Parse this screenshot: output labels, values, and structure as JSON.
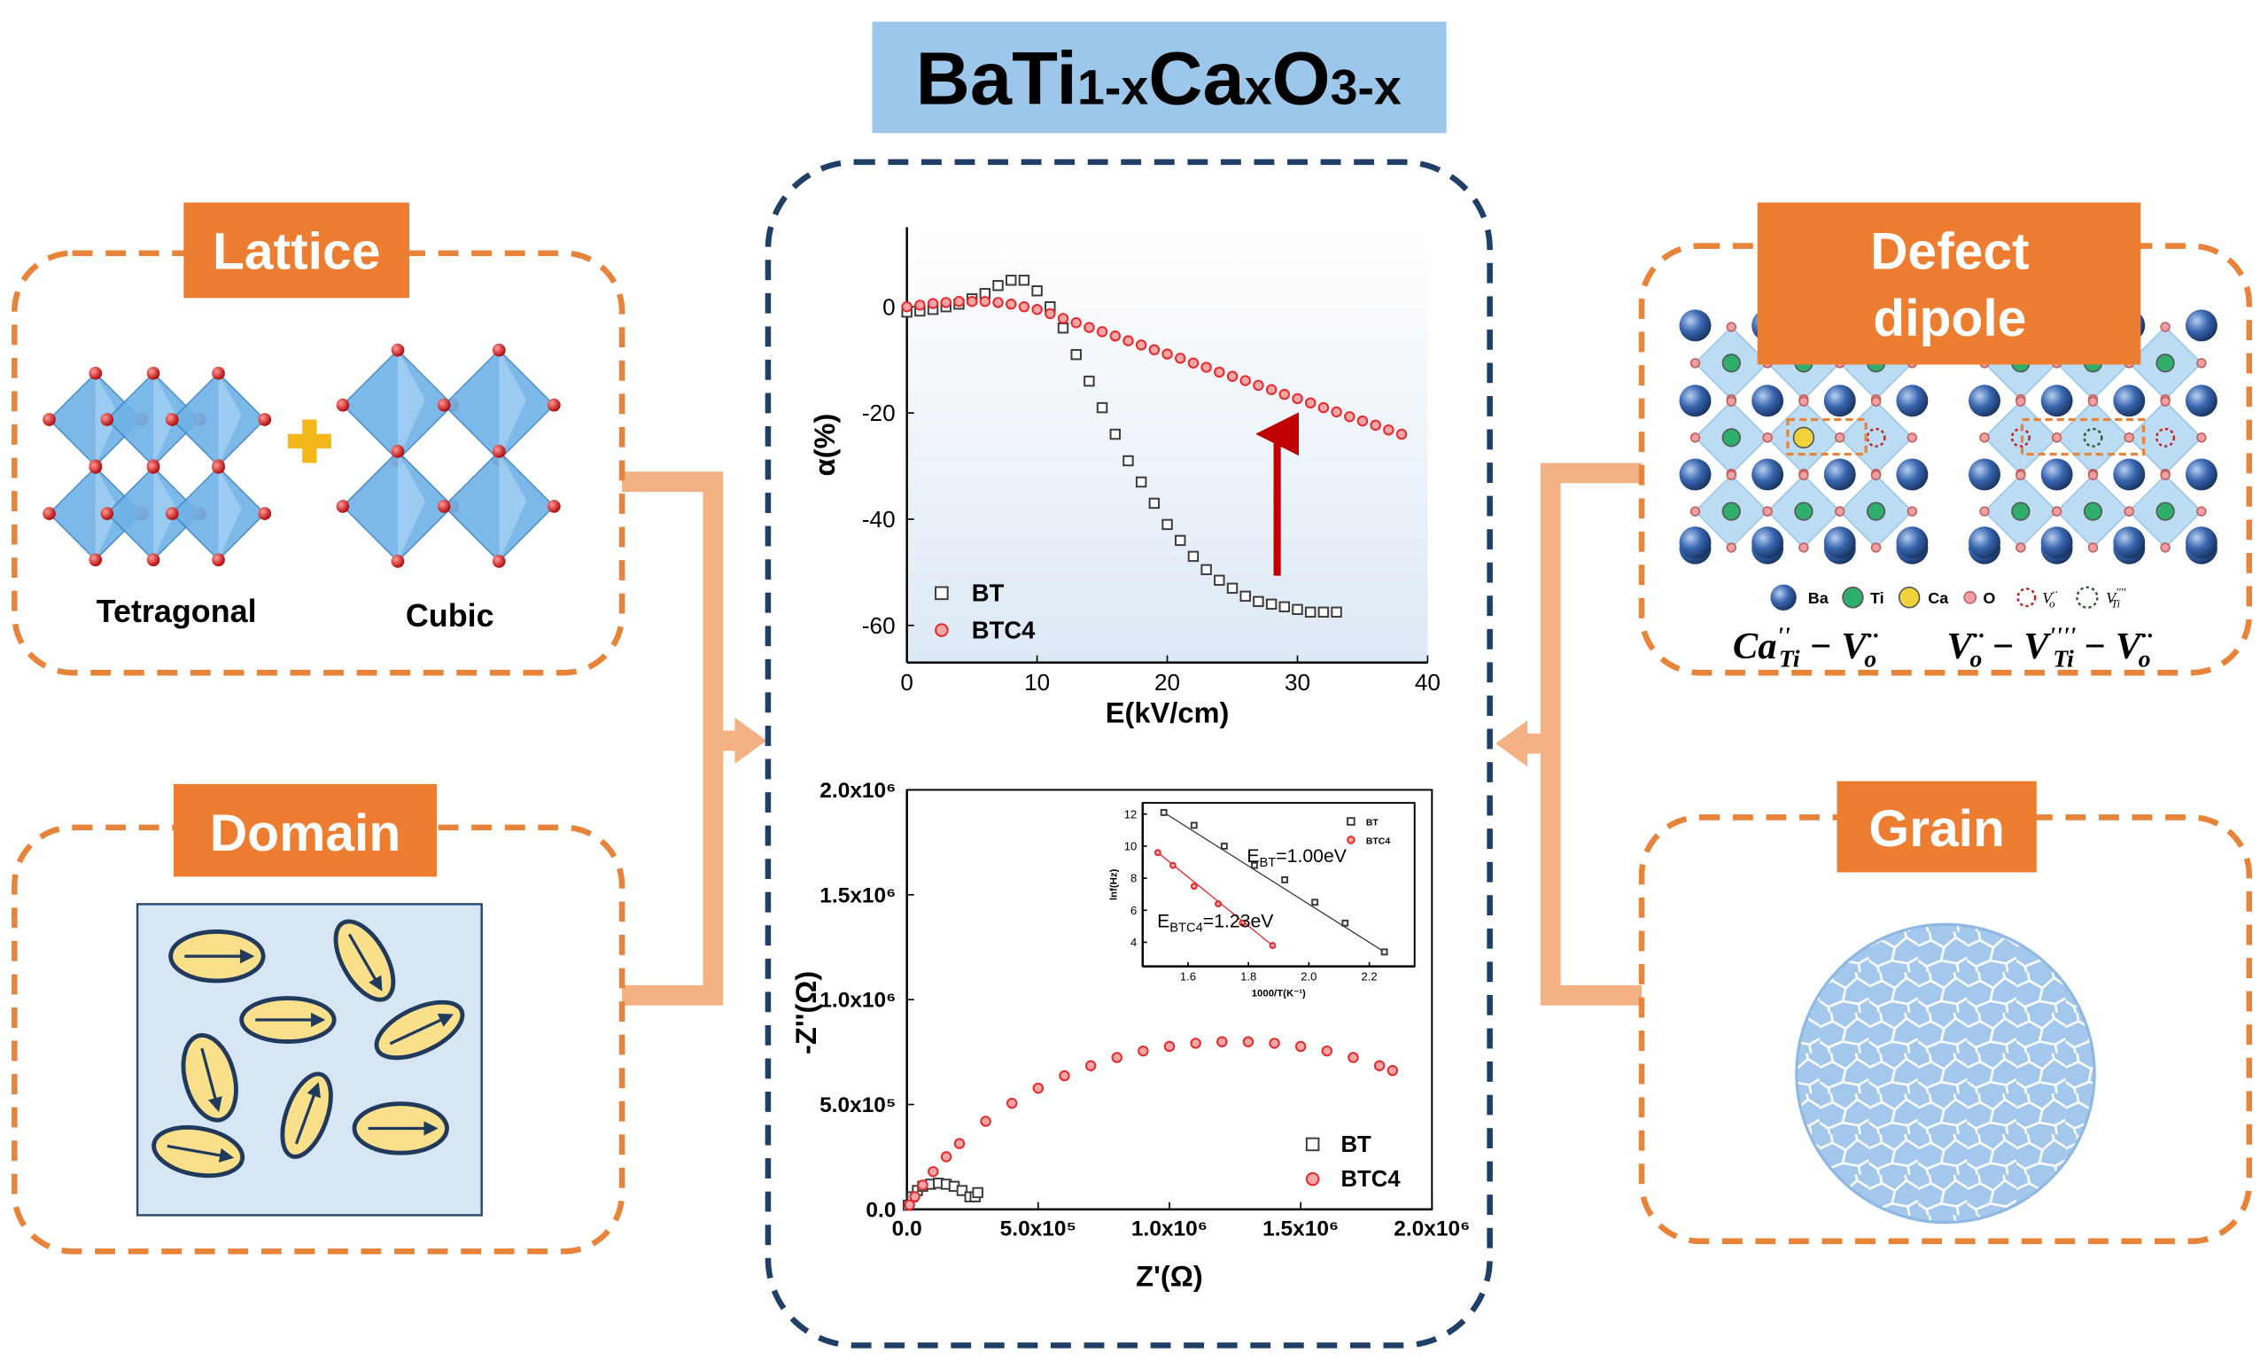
{
  "title": {
    "parts": [
      "BaTi",
      "1-x",
      "Ca",
      "x",
      "O",
      "3-x"
    ]
  },
  "panels": {
    "lattice": {
      "title": "Lattice",
      "labels": [
        "Tetragonal",
        "Cubic"
      ]
    },
    "domain": {
      "title": "Domain"
    },
    "defect": {
      "title": [
        "Defect",
        "dipole"
      ],
      "legend": [
        "Ba",
        "Ti",
        "Ca",
        "O"
      ],
      "vacancy_o": [
        "V",
        "··",
        "o"
      ],
      "vacancy_ti": [
        "V",
        "''''",
        "Ti"
      ],
      "formula1": [
        "Ca",
        "''",
        "Ti",
        " − ",
        "V",
        "··",
        "o"
      ],
      "formula2": [
        "V",
        "··",
        "o",
        " − ",
        "V",
        "''''",
        "Ti",
        " − ",
        "V",
        "··",
        "o"
      ]
    },
    "grain": {
      "title": "Grain"
    }
  },
  "chart_data": [
    {
      "type": "scatter",
      "xlabel": "E(kV/cm)",
      "ylabel": "α(%)",
      "xlim": [
        0,
        40
      ],
      "xticks": [
        0,
        10,
        20,
        30,
        40
      ],
      "ylim": [
        -67,
        15
      ],
      "yticks": [
        -60,
        -40,
        -20,
        0
      ],
      "legend": "lower left",
      "series": [
        {
          "name": "BT",
          "color": "#3a3a3a",
          "marker": "square",
          "x": [
            0,
            1,
            2,
            3,
            4,
            5,
            6,
            7,
            8,
            9,
            10,
            11,
            12,
            13,
            14,
            15,
            16,
            17,
            18,
            19,
            20,
            21,
            22,
            23,
            24,
            25,
            26,
            27,
            28,
            29,
            30,
            31,
            32,
            33
          ],
          "values": [
            -1,
            -0.8,
            -0.5,
            0,
            0.5,
            1.5,
            2.5,
            4,
            5,
            5,
            3,
            0,
            -4,
            -9,
            -14,
            -19,
            -24,
            -29,
            -33,
            -37,
            -41,
            -44,
            -47,
            -49.5,
            -51.5,
            -53,
            -54.5,
            -55.5,
            -56,
            -56.5,
            -57,
            -57.5,
            -57.5,
            -57.5
          ]
        },
        {
          "name": "BTC4",
          "color": "#e8262a",
          "marker": "circle",
          "x": [
            0,
            1,
            2,
            3,
            4,
            5,
            6,
            7,
            8,
            9,
            10,
            11,
            12,
            13,
            14,
            15,
            16,
            17,
            18,
            19,
            20,
            21,
            22,
            23,
            24,
            25,
            26,
            27,
            28,
            29,
            30,
            31,
            32,
            33,
            34,
            35,
            36,
            37,
            38
          ],
          "values": [
            0,
            0.3,
            0.6,
            0.8,
            1,
            1,
            1,
            0.8,
            0.5,
            0,
            -0.5,
            -1.3,
            -2.2,
            -3.0,
            -3.9,
            -4.7,
            -5.5,
            -6.4,
            -7.2,
            -8.1,
            -8.9,
            -9.7,
            -10.6,
            -11.4,
            -12.3,
            -13.1,
            -13.9,
            -14.8,
            -15.6,
            -16.5,
            -17.3,
            -18.1,
            -19.0,
            -19.8,
            -20.7,
            -21.5,
            -22.3,
            -23.2,
            -24.0
          ]
        }
      ]
    },
    {
      "type": "scatter",
      "xlabel": "Z'(Ω)",
      "ylabel": "-Z''(Ω)",
      "xlim": [
        0,
        2000000
      ],
      "xticks": [
        {
          "value": 0,
          "label": "0.0"
        },
        {
          "value": 500000,
          "label": "5.0x10⁵"
        },
        {
          "value": 1000000,
          "label": "1.0x10⁶"
        },
        {
          "value": 1500000,
          "label": "1.5x10⁶"
        },
        {
          "value": 2000000,
          "label": "2.0x10⁶"
        }
      ],
      "ylim": [
        0,
        2000000
      ],
      "yticks": [
        {
          "value": 0,
          "label": "0.0"
        },
        {
          "value": 500000,
          "label": "5.0x10⁵"
        },
        {
          "value": 1000000,
          "label": "1.0x10⁶"
        },
        {
          "value": 1500000,
          "label": "1.5x10⁶"
        },
        {
          "value": 2000000,
          "label": "2.0x10⁶"
        }
      ],
      "legend": "lower right",
      "series": [
        {
          "name": "BT",
          "color": "#3a3a3a",
          "marker": "square",
          "x": [
            5000,
            20000,
            40000,
            60000,
            90000,
            120000,
            150000,
            180000,
            210000,
            240000,
            260000,
            270000
          ],
          "values": [
            20000,
            60000,
            90000,
            110000,
            120000,
            125000,
            120000,
            110000,
            90000,
            60000,
            60000,
            80000
          ]
        },
        {
          "name": "BTC4",
          "color": "#e8262a",
          "marker": "circle",
          "x": [
            10000,
            30000,
            60000,
            100000,
            150000,
            200000,
            300000,
            400000,
            500000,
            600000,
            700000,
            800000,
            900000,
            1000000,
            1100000,
            1200000,
            1300000,
            1400000,
            1500000,
            1600000,
            1700000,
            1800000,
            1850000
          ],
          "values": [
            21000,
            61000,
            116000,
            180000,
            251000,
            314000,
            420000,
            506000,
            578000,
            637000,
            685000,
            724000,
            755000,
            777000,
            792000,
            799000,
            799000,
            792000,
            777000,
            755000,
            724000,
            685000,
            662000
          ]
        }
      ]
    },
    {
      "type": "scatter",
      "xlabel": "1000/T(K⁻¹)",
      "ylabel": "lnf(Hz)",
      "xlim": [
        1.45,
        2.35
      ],
      "xticks": [
        1.6,
        1.8,
        {
          "value": 2,
          "label": "2.0"
        },
        2.2
      ],
      "ylim": [
        2.5,
        12.7
      ],
      "yticks": [
        4,
        6,
        8,
        10,
        12
      ],
      "legend": "upper right",
      "annotations": [
        [
          "E",
          "BT",
          "=1.00eV"
        ],
        [
          "E",
          "BTC4",
          "=1.23eV"
        ]
      ],
      "series": [
        {
          "name": "BT",
          "color": "#3a3a3a",
          "marker": "square",
          "x": [
            1.52,
            1.62,
            1.72,
            1.82,
            1.92,
            2.02,
            2.12,
            2.25
          ],
          "values": [
            12.1,
            11.3,
            10.0,
            8.8,
            7.9,
            6.5,
            5.2,
            3.4
          ]
        },
        {
          "name": "BTC4",
          "color": "#e8262a",
          "marker": "circle",
          "x": [
            1.5,
            1.55,
            1.62,
            1.7,
            1.78,
            1.88
          ],
          "values": [
            9.6,
            8.8,
            7.5,
            6.4,
            5.2,
            3.8
          ]
        }
      ]
    }
  ]
}
